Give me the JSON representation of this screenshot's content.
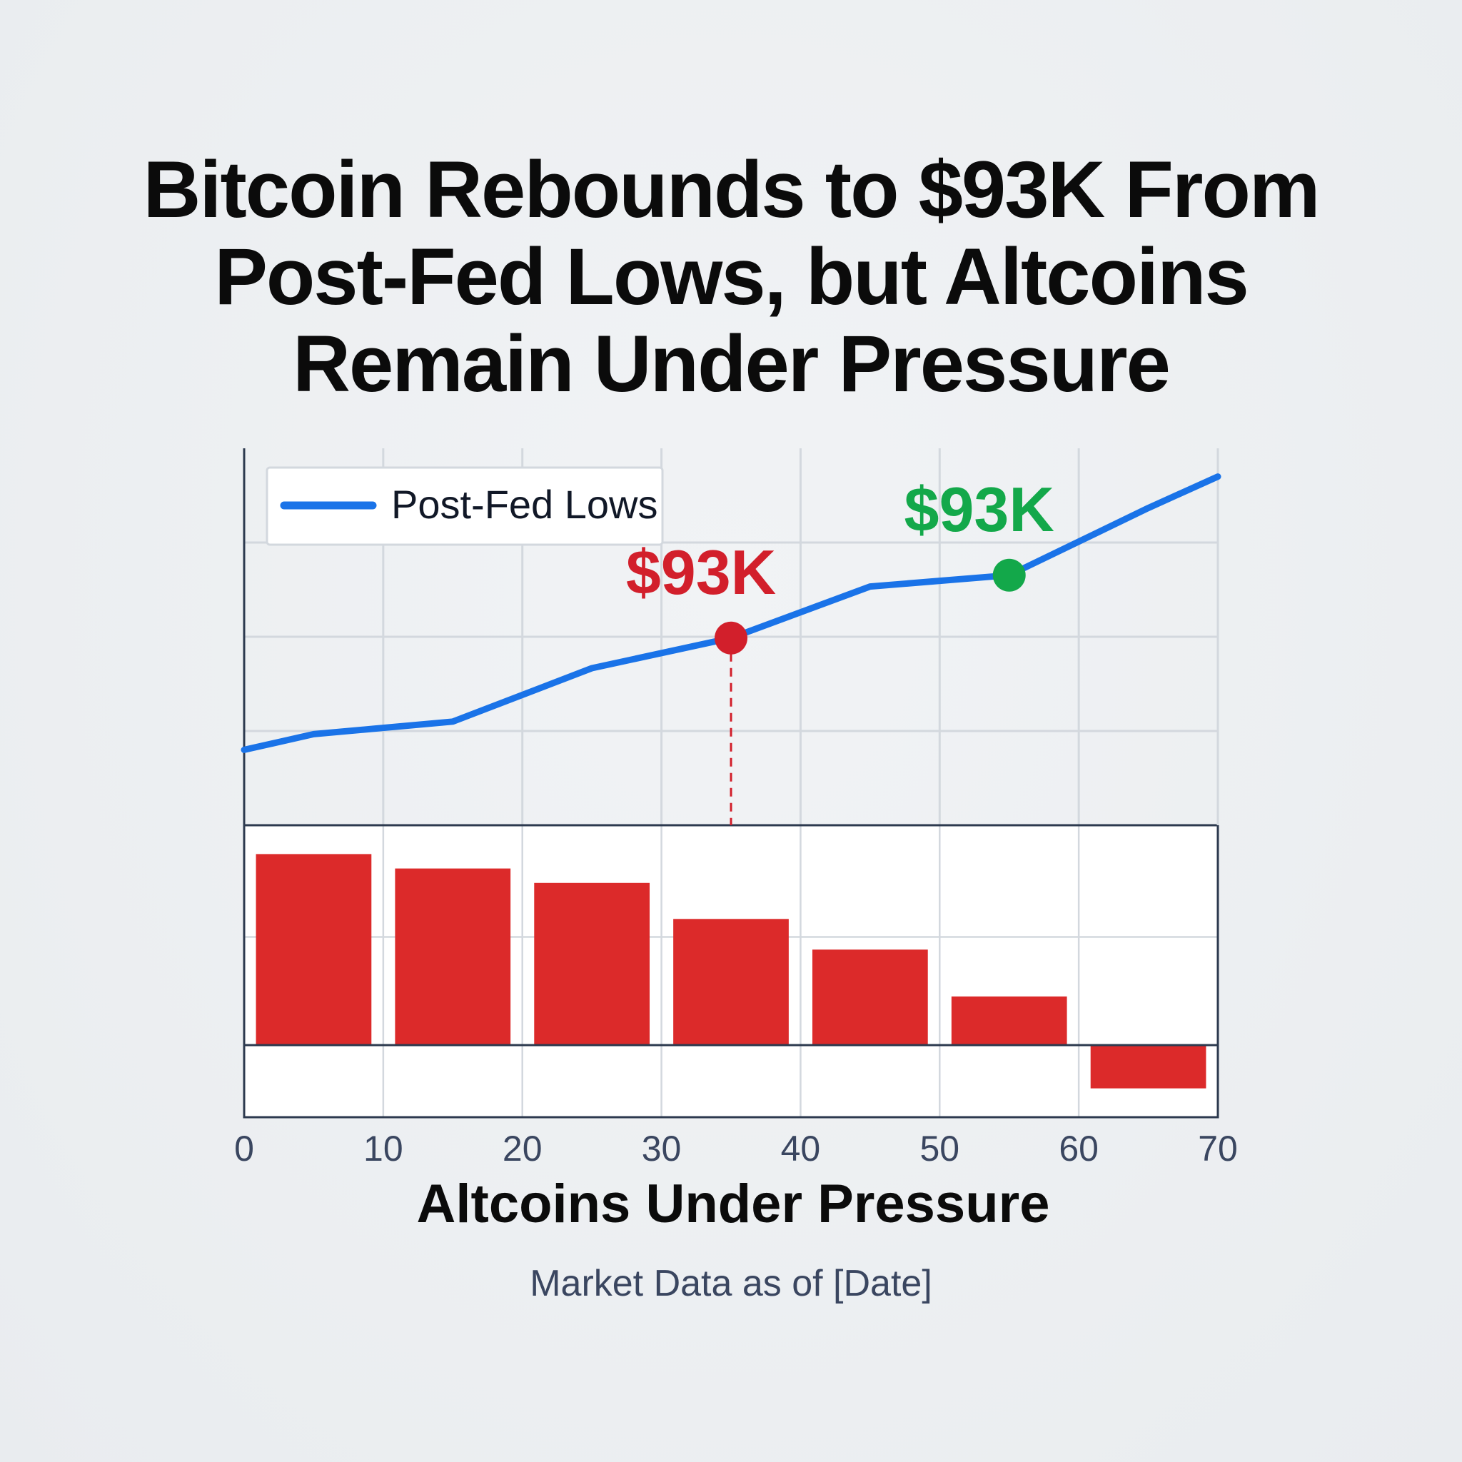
{
  "headline": {
    "line1": "Bitcoin Rebounds to $93K From",
    "line2": "Post-Fed Lows, but Altcoins",
    "line3": "Remain Under Pressure"
  },
  "footnote": "Market Data as of [Date]",
  "colors": {
    "line": "#1a73e8",
    "bar": "#dc2a2a",
    "marker_red": "#d21f2b",
    "marker_green": "#13a84a",
    "grid": "#d3d8de",
    "axis": "#2d3a4f"
  },
  "chart_data": [
    {
      "type": "line",
      "legend": {
        "position": "top-left",
        "entries": [
          "Post-Fed Lows"
        ]
      },
      "series": [
        {
          "name": "Post-Fed Lows",
          "x": [
            0,
            5,
            15,
            25,
            35,
            45,
            55,
            65,
            70
          ],
          "y": [
            1.2,
            1.45,
            1.65,
            2.5,
            2.98,
            3.8,
            3.98,
            5.05,
            5.55
          ]
        }
      ],
      "xlim": [
        0,
        70
      ],
      "ylim": [
        0,
        6
      ],
      "grid": true,
      "annotations": [
        {
          "label": "$93K",
          "x": 35,
          "y": 2.98,
          "color": "red",
          "dropline": true
        },
        {
          "label": "$93K",
          "x": 55,
          "y": 3.98,
          "color": "green"
        }
      ]
    },
    {
      "type": "bar",
      "xlabel": "Altcoins Under Pressure",
      "x_ticks": [
        "0",
        "10",
        "20",
        "30",
        "40",
        "50",
        "60",
        "70"
      ],
      "categories": [
        5,
        15,
        25,
        35,
        45,
        55,
        65
      ],
      "values": [
        5.3,
        4.9,
        4.5,
        3.5,
        2.65,
        1.35,
        -1.2
      ],
      "xlim": [
        0,
        70
      ],
      "ylim": [
        -2,
        6.1
      ],
      "grid": true
    }
  ]
}
